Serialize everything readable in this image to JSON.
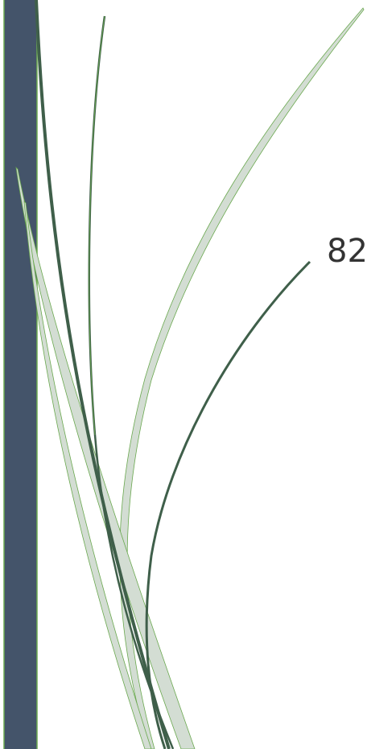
{
  "page_number": "82"
}
